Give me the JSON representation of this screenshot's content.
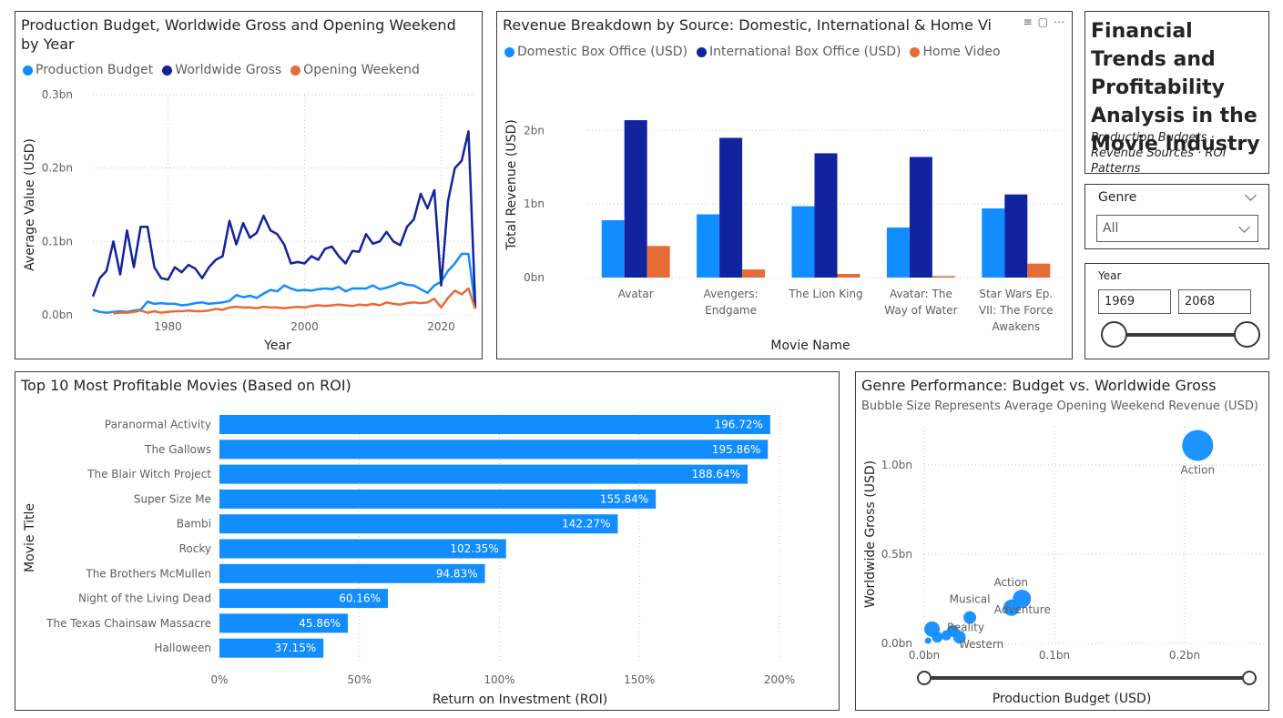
{
  "line_panel": {
    "title_line1": "Production Budget, Worldwide Gross and Opening Weekend",
    "title_line2": "by Year",
    "legend": [
      {
        "label": "Production Budget",
        "color": "#118dff"
      },
      {
        "label": "Worldwide Gross",
        "color": "#12239e"
      },
      {
        "label": "Opening Weekend",
        "color": "#e66c37"
      }
    ],
    "xlabel": "Year",
    "ylabel": "Average Value (USD)",
    "yticks": [
      "0.0bn",
      "0.1bn",
      "0.2bn",
      "0.3bn"
    ],
    "xticks": [
      "1980",
      "2000",
      "2020"
    ]
  },
  "column_panel": {
    "title": "Revenue Breakdown by Source: Domestic, International & Home Vi",
    "legend": [
      {
        "label": "Domestic Box Office (USD)",
        "color": "#118dff"
      },
      {
        "label": "International Box Office (USD)",
        "color": "#12239e"
      },
      {
        "label": "Home Video",
        "color": "#e66c37"
      }
    ],
    "xlabel": "Movie Name",
    "ylabel": "Total Revenue (USD)",
    "yticks": [
      "0bn",
      "1bn",
      "2bn"
    ],
    "categories": [
      [
        "Avatar"
      ],
      [
        "Avengers:",
        "Endgame"
      ],
      [
        "The Lion King"
      ],
      [
        "Avatar: The",
        "Way of Water"
      ],
      [
        "Star Wars Ep.",
        "VII: The Force",
        "Awakens"
      ]
    ]
  },
  "title_card": {
    "title": "Financial Trends and Profitability Analysis in the Movie Industry",
    "subtitle": "Production Budgets · Revenue Sources · ROI Patterns"
  },
  "genre_slicer": {
    "label": "Genre",
    "value": "All"
  },
  "year_slicer": {
    "label": "Year",
    "from": "1969",
    "to": "2068"
  },
  "bar_panel": {
    "title": "Top 10 Most Profitable Movies (Based on ROI)",
    "xlabel": "Return on Investment (ROI)",
    "ylabel": "Movie Title",
    "xticks": [
      "0%",
      "50%",
      "100%",
      "150%",
      "200%"
    ]
  },
  "bubble_panel": {
    "title": "Genre Performance: Budget vs. Worldwide Gross",
    "subtitle": "Bubble Size Represents Average Opening Weekend Revenue (USD)",
    "xlabel": "Production Budget (USD)",
    "ylabel": "Worldwide Gross (USD)",
    "xticks": [
      "0.0bn",
      "0.1bn",
      "0.2bn"
    ],
    "yticks": [
      "0.0bn",
      "0.5bn",
      "1.0bn"
    ]
  },
  "chart_data": [
    {
      "type": "line",
      "x": [
        1969,
        1970,
        1971,
        1972,
        1973,
        1974,
        1975,
        1976,
        1977,
        1978,
        1979,
        1980,
        1981,
        1982,
        1983,
        1984,
        1985,
        1986,
        1987,
        1988,
        1989,
        1990,
        1991,
        1992,
        1993,
        1994,
        1995,
        1996,
        1997,
        1998,
        1999,
        2000,
        2001,
        2002,
        2003,
        2004,
        2005,
        2006,
        2007,
        2008,
        2009,
        2010,
        2011,
        2012,
        2013,
        2014,
        2015,
        2016,
        2017,
        2018,
        2019,
        2020,
        2021,
        2022,
        2023,
        2024,
        2025
      ],
      "series": [
        {
          "name": "Production Budget",
          "color": "#118dff",
          "values": [
            0.007,
            0.004,
            0.003,
            0.004,
            0.005,
            0.004,
            0.006,
            0.007,
            0.018,
            0.015,
            0.016,
            0.015,
            0.015,
            0.013,
            0.014,
            0.016,
            0.017,
            0.015,
            0.016,
            0.017,
            0.019,
            0.027,
            0.024,
            0.026,
            0.023,
            0.029,
            0.034,
            0.032,
            0.04,
            0.036,
            0.033,
            0.034,
            0.033,
            0.035,
            0.036,
            0.035,
            0.038,
            0.032,
            0.036,
            0.036,
            0.036,
            0.04,
            0.035,
            0.037,
            0.04,
            0.044,
            0.041,
            0.04,
            0.035,
            0.03,
            0.04,
            0.045,
            0.06,
            0.07,
            0.083,
            0.083,
            0.01
          ]
        },
        {
          "name": "Worldwide Gross",
          "color": "#12239e",
          "values": [
            0.025,
            0.05,
            0.06,
            0.1,
            0.055,
            0.115,
            0.065,
            0.12,
            0.12,
            0.065,
            0.05,
            0.048,
            0.065,
            0.058,
            0.068,
            0.063,
            0.05,
            0.065,
            0.075,
            0.08,
            0.128,
            0.096,
            0.125,
            0.105,
            0.112,
            0.135,
            0.115,
            0.11,
            0.096,
            0.07,
            0.072,
            0.07,
            0.08,
            0.075,
            0.09,
            0.093,
            0.08,
            0.07,
            0.087,
            0.086,
            0.11,
            0.097,
            0.1,
            0.113,
            0.1,
            0.095,
            0.12,
            0.13,
            0.165,
            0.145,
            0.17,
            0.04,
            0.155,
            0.2,
            0.21,
            0.25,
            0.01
          ]
        },
        {
          "name": "Opening Weekend",
          "color": "#e66c37",
          "values": [
            null,
            null,
            null,
            0.002,
            0.003,
            0.003,
            0.004,
            0.006,
            0.003,
            0.005,
            0.003,
            0.004,
            0.005,
            0.005,
            0.006,
            0.005,
            0.005,
            0.006,
            0.008,
            0.007,
            0.01,
            0.011,
            0.01,
            0.01,
            0.009,
            0.011,
            0.01,
            0.01,
            0.009,
            0.01,
            0.011,
            0.01,
            0.012,
            0.013,
            0.012,
            0.013,
            0.014,
            0.013,
            0.012,
            0.014,
            0.013,
            0.015,
            0.013,
            0.017,
            0.015,
            0.014,
            0.016,
            0.017,
            0.016,
            0.017,
            0.022,
            0.01,
            0.023,
            0.033,
            0.028,
            0.036,
            0.008
          ]
        }
      ],
      "xlabel": "Year",
      "ylabel": "Average Value (USD)",
      "ylim": [
        0,
        0.3
      ],
      "xlim": [
        1969,
        2025
      ]
    },
    {
      "type": "bar",
      "categories": [
        "Avatar",
        "Avengers: Endgame",
        "The Lion King",
        "Avatar: The Way of Water",
        "Star Wars Ep. VII: The Force Awakens"
      ],
      "series": [
        {
          "name": "Domestic Box Office (USD)",
          "color": "#118dff",
          "values": [
            0.78,
            0.86,
            0.97,
            0.68,
            0.94
          ]
        },
        {
          "name": "International Box Office (USD)",
          "color": "#12239e",
          "values": [
            2.14,
            1.9,
            1.69,
            1.64,
            1.13
          ]
        },
        {
          "name": "Home Video",
          "color": "#e66c37",
          "values": [
            0.43,
            0.11,
            0.05,
            0.02,
            0.19
          ]
        }
      ],
      "xlabel": "Movie Name",
      "ylabel": "Total Revenue (USD)",
      "ylim": [
        0,
        2.5
      ]
    },
    {
      "type": "bar",
      "orientation": "horizontal",
      "categories": [
        "Paranormal Activity",
        "The Gallows",
        "The Blair Witch Project",
        "Super Size Me",
        "Bambi",
        "Rocky",
        "The Brothers McMullen",
        "Night of the Living Dead",
        "The Texas Chainsaw Massacre",
        "Halloween"
      ],
      "values": [
        196.72,
        195.86,
        188.64,
        155.84,
        142.27,
        102.35,
        94.83,
        60.16,
        45.86,
        37.15
      ],
      "labels": [
        "196.72%",
        "195.86%",
        "188.64%",
        "155.84%",
        "142.27%",
        "102.35%",
        "94.83%",
        "60.16%",
        "45.86%",
        "37.15%"
      ],
      "color": "#118dff",
      "xlabel": "Return on Investment (ROI)",
      "ylabel": "Movie Title",
      "xlim": [
        0,
        200
      ]
    },
    {
      "type": "scatter",
      "points": [
        {
          "x": 0.21,
          "y": 1.11,
          "size": 34,
          "label": "Action"
        },
        {
          "x": 0.075,
          "y": 0.25,
          "size": 20,
          "label": "Action"
        },
        {
          "x": 0.067,
          "y": 0.2,
          "size": 18,
          "label": "Adventure"
        },
        {
          "x": 0.035,
          "y": 0.145,
          "size": 14,
          "label": "Musical"
        },
        {
          "x": 0.006,
          "y": 0.08,
          "size": 17,
          "label": ""
        },
        {
          "x": 0.022,
          "y": 0.07,
          "size": 13,
          "label": "Reality"
        },
        {
          "x": 0.027,
          "y": 0.035,
          "size": 14,
          "label": "Western"
        },
        {
          "x": 0.01,
          "y": 0.035,
          "size": 12,
          "label": ""
        },
        {
          "x": 0.017,
          "y": 0.045,
          "size": 11,
          "label": ""
        },
        {
          "x": 0.003,
          "y": 0.015,
          "size": 7,
          "label": ""
        }
      ],
      "color": "#118dff",
      "xlabel": "Production Budget (USD)",
      "ylabel": "Worldwide Gross (USD)",
      "xlim": [
        0,
        0.25
      ],
      "ylim": [
        0,
        1.2
      ]
    }
  ]
}
